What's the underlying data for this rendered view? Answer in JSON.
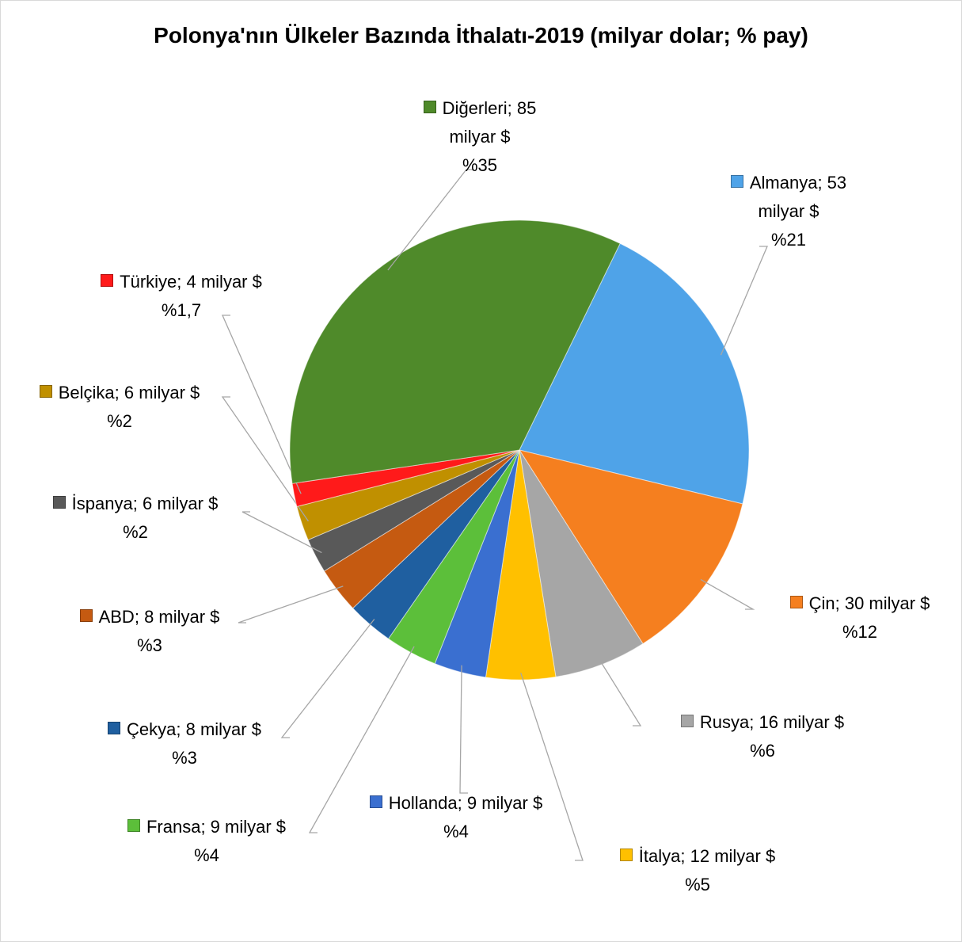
{
  "chart_data": {
    "type": "pie",
    "title": "Polonya'nın Ülkeler Bazında İthalatı-2019 (milyar dolar; % pay)",
    "separator": "; ",
    "categories": [
      "Almanya",
      "Çin",
      "Rusya",
      "İtalya",
      "Hollanda",
      "Fransa",
      "Çekya",
      "ABD",
      "İspanya",
      "Belçika",
      "Türkiye",
      "Diğerleri"
    ],
    "values": [
      53,
      30,
      16,
      12,
      9,
      9,
      8,
      8,
      6,
      6,
      4,
      85
    ],
    "value_labels": [
      "53 milyar $",
      "30 milyar $",
      "16 milyar $",
      "12 milyar $",
      "9 milyar $",
      "9 milyar $",
      "8 milyar $",
      "8 milyar $",
      "6 milyar $",
      "6 milyar $",
      "4 milyar $",
      "85 milyar $"
    ],
    "shares": [
      21,
      12,
      6,
      5,
      4,
      4,
      3,
      3,
      2,
      2,
      1.7,
      35
    ],
    "share_labels": [
      "%21",
      "%12",
      "%6",
      "%5",
      "%4",
      "%4",
      "%3",
      "%3",
      "%2",
      "%2",
      "%1,7",
      "%35"
    ],
    "colors": [
      "#4fa3e8",
      "#f57f1f",
      "#a6a6a6",
      "#ffc000",
      "#3a6fd0",
      "#5cbf3a",
      "#1f5fa0",
      "#c55a11",
      "#595959",
      "#c09000",
      "#ff1a1a",
      "#4f8a2a"
    ]
  }
}
